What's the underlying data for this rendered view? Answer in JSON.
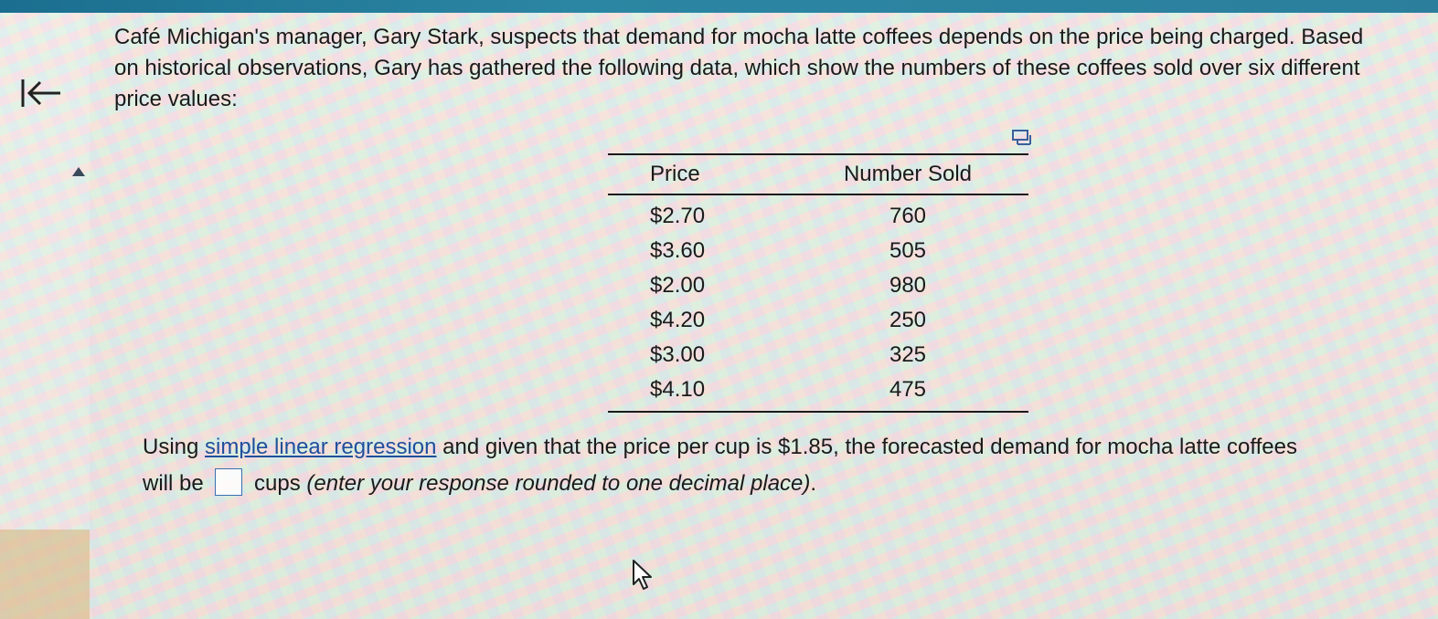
{
  "question": {
    "text": "Café Michigan's manager, Gary Stark, suspects that demand for mocha latte coffees depends on the price being charged. Based on historical observations, Gary has gathered the following data, which show the numbers of these coffees sold over six different price values:"
  },
  "table": {
    "headers": [
      "Price",
      "Number Sold"
    ],
    "rows": [
      {
        "price": "$2.70",
        "sold": "760"
      },
      {
        "price": "$3.60",
        "sold": "505"
      },
      {
        "price": "$2.00",
        "sold": "980"
      },
      {
        "price": "$4.20",
        "sold": "250"
      },
      {
        "price": "$3.00",
        "sold": "325"
      },
      {
        "price": "$4.10",
        "sold": "475"
      }
    ]
  },
  "prompt": {
    "part1": "Using ",
    "link": "simple linear regression",
    "part2": " and given that the price per cup is $1.85, the forecasted demand for mocha latte coffees will be ",
    "part3": " cups ",
    "instruction": "(enter your response rounded to one decimal place)",
    "part4": ".",
    "answer_value": ""
  },
  "icons": {
    "back": "back-to-start-arrow-icon",
    "copy": "copy-data-icon",
    "caret": "collapse-caret-icon",
    "cursor": "mouse-pointer-icon"
  },
  "colors": {
    "link": "#1f4f9c",
    "top_bar": "#2b86a3",
    "answer_box_border": "#3a6fb0"
  }
}
